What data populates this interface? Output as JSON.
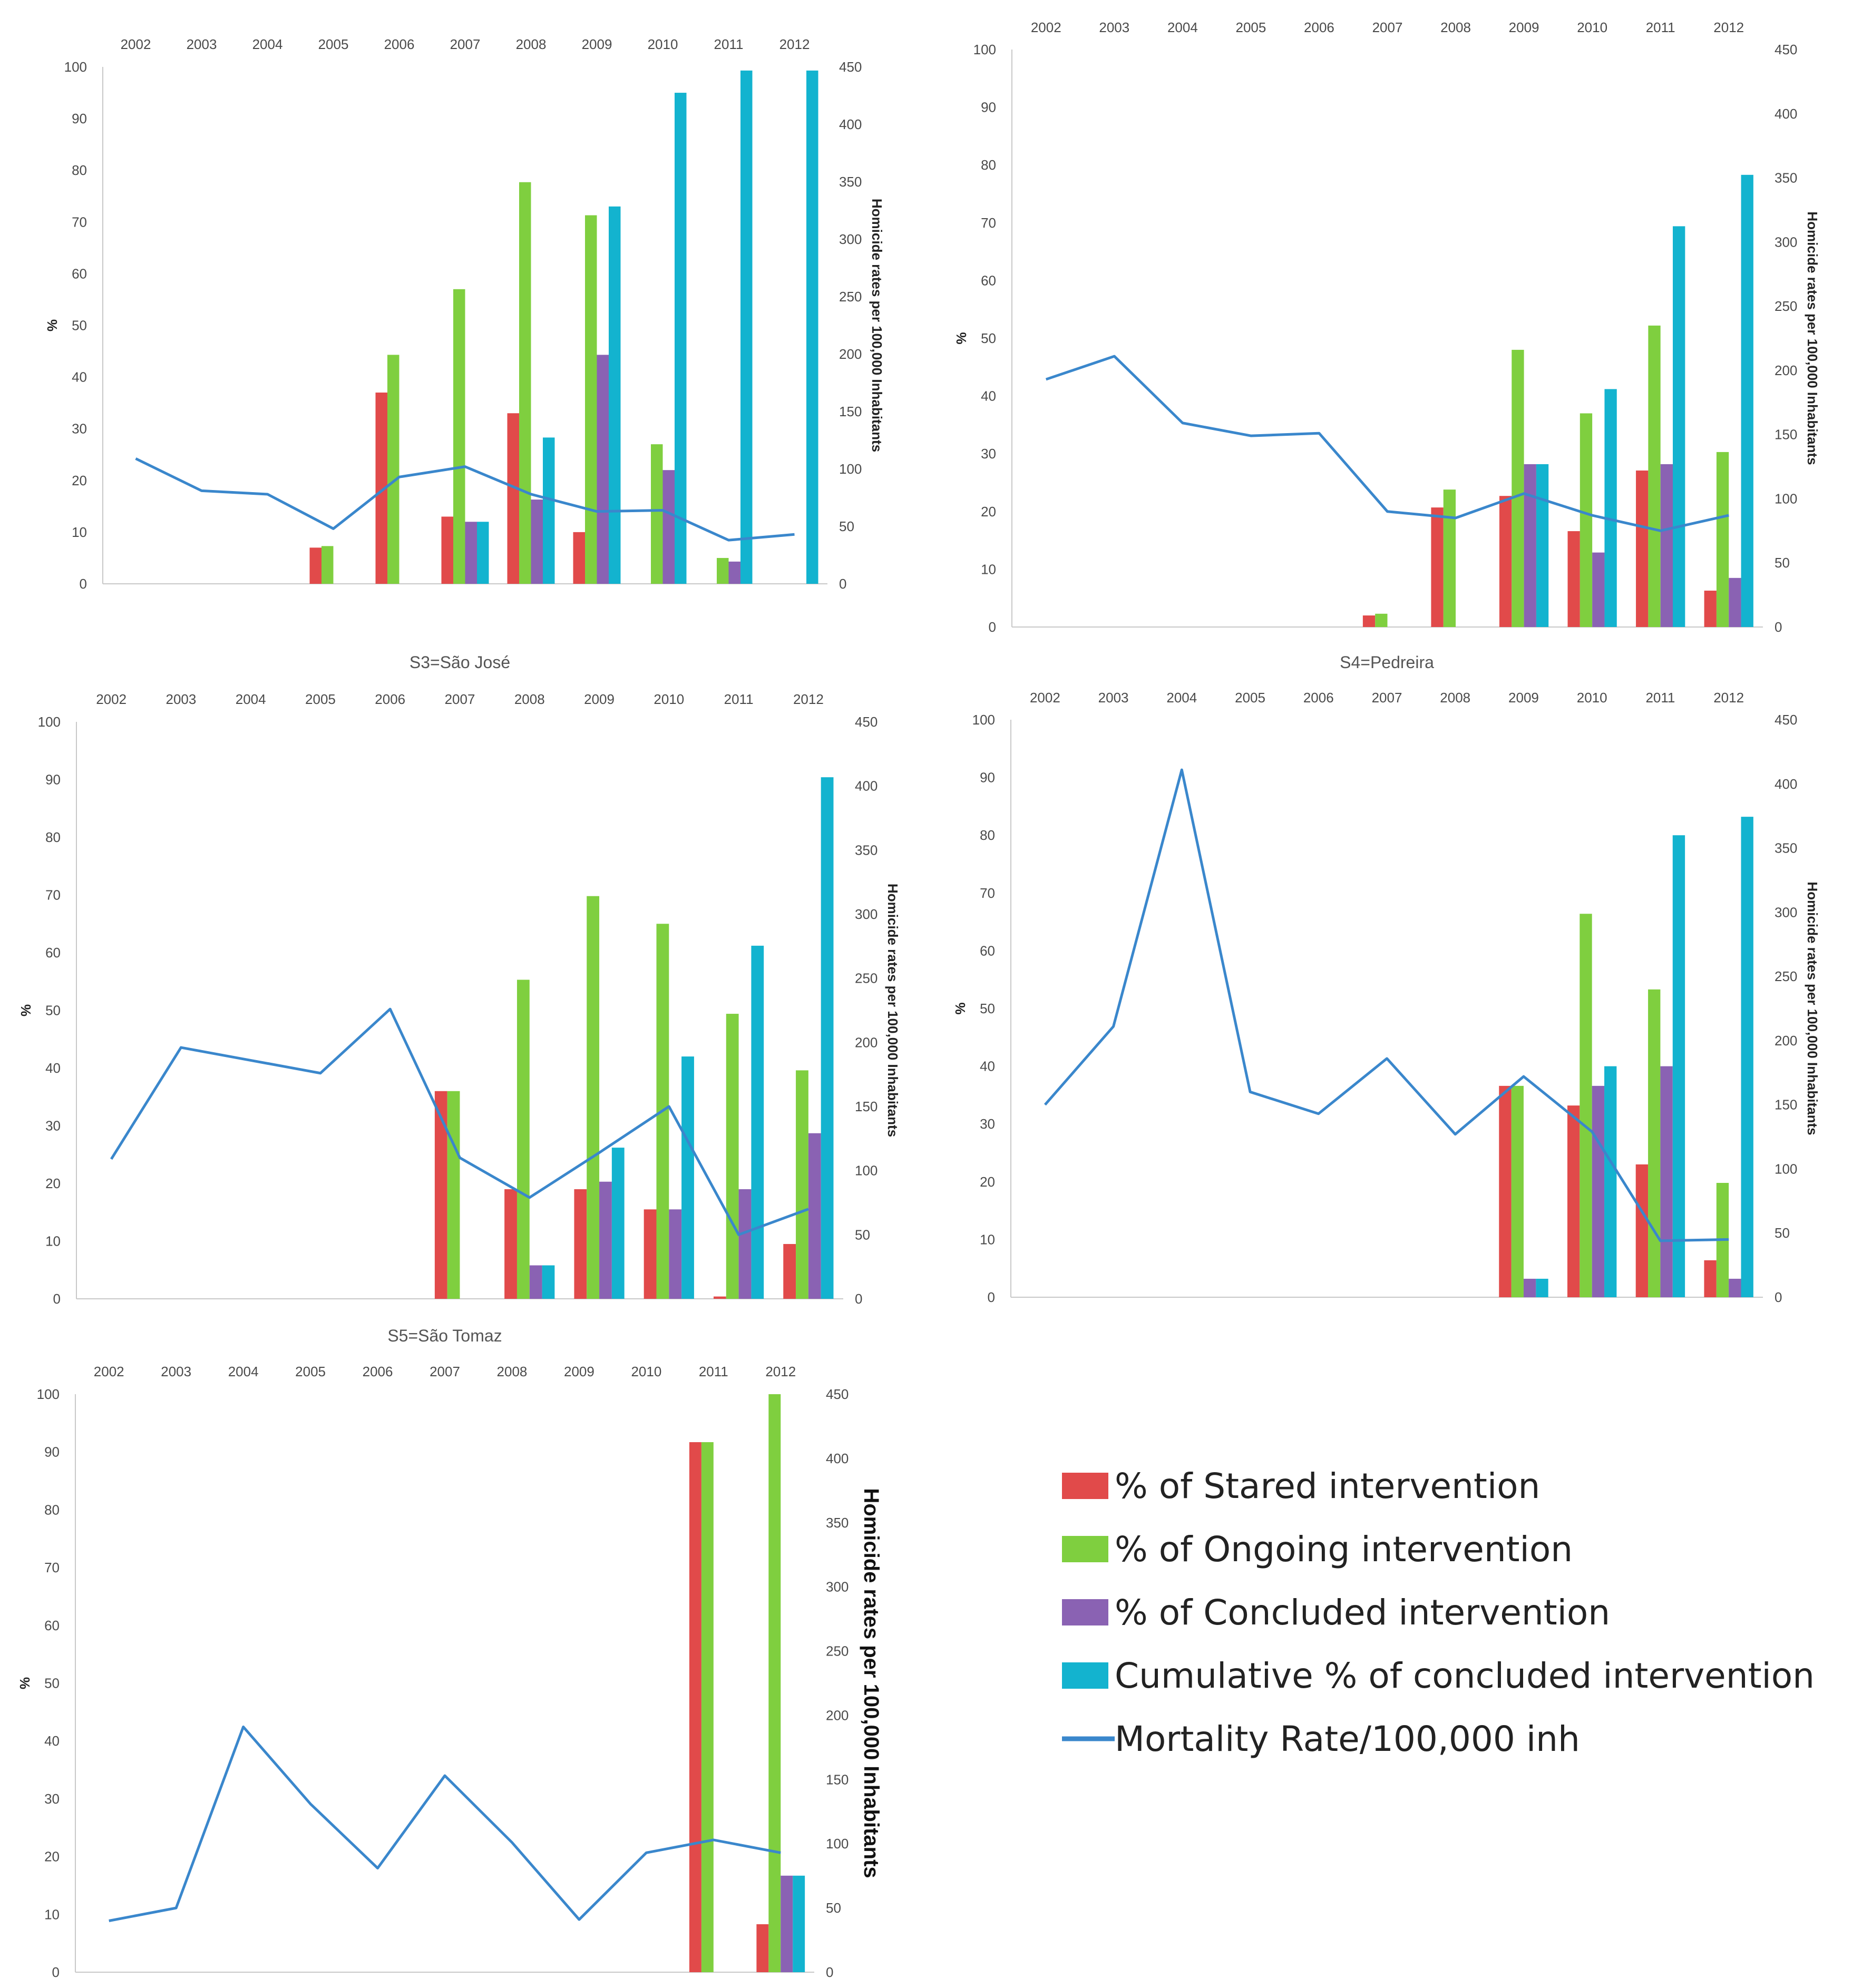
{
  "chart_data": [
    {
      "id": "s2",
      "type": "bar",
      "title": "",
      "categories": [
        "2002",
        "2003",
        "2004",
        "2005",
        "2006",
        "2007",
        "2008",
        "2009",
        "2010",
        "2011",
        "2012"
      ],
      "series": [
        {
          "name": "% of Stared intervention",
          "color": "#e14a4a",
          "values": [
            0,
            0,
            0,
            7,
            37,
            13,
            33,
            10,
            0,
            0,
            0
          ]
        },
        {
          "name": "% of Ongoing intervention",
          "color": "#7fcf3f",
          "values": [
            0,
            0,
            0,
            7.3,
            44.3,
            57,
            77.7,
            71.3,
            27,
            5,
            0
          ]
        },
        {
          "name": "% of Concluded intervention",
          "color": "#8a62b3",
          "values": [
            0,
            0,
            0,
            0,
            0,
            12,
            16.3,
            44.3,
            22,
            4.3,
            0
          ]
        },
        {
          "name": "Cumulative % of concluded intervention",
          "color": "#13b3cf",
          "values": [
            0,
            0,
            0,
            0,
            0,
            12,
            28.3,
            73,
            95,
            99.3,
            99.3
          ]
        }
      ],
      "line": {
        "name": "Mortality Rate/100,000 inh",
        "color": "#3a87cc",
        "values": [
          109,
          81,
          78,
          48,
          93,
          102,
          78,
          63,
          64,
          38,
          43
        ]
      },
      "ylabel": "%",
      "ylim": [
        0,
        100
      ],
      "yticks": [
        "0",
        "10",
        "20",
        "30",
        "40",
        "50",
        "60",
        "70",
        "80",
        "90",
        "100"
      ],
      "y2label": "Homicide rates per 100,000 Inhabitants",
      "y2lim": [
        0,
        450
      ],
      "y2ticks": [
        "0",
        "50",
        "100",
        "150",
        "200",
        "250",
        "300",
        "350",
        "400",
        "450"
      ]
    },
    {
      "id": "s3",
      "type": "bar",
      "title": "",
      "categories": [
        "2002",
        "2003",
        "2004",
        "2005",
        "2006",
        "2007",
        "2008",
        "2009",
        "2010",
        "2011",
        "2012"
      ],
      "series": [
        {
          "name": "% of Stared intervention",
          "color": "#e14a4a",
          "values": [
            0,
            0,
            0,
            0,
            0,
            2,
            20.7,
            22.7,
            16.6,
            27.1,
            6.3
          ]
        },
        {
          "name": "% of Ongoing intervention",
          "color": "#7fcf3f",
          "values": [
            0,
            0,
            0,
            0,
            0,
            2.3,
            23.8,
            48,
            37,
            52.2,
            30.3
          ]
        },
        {
          "name": "% of Concluded intervention",
          "color": "#8a62b3",
          "values": [
            0,
            0,
            0,
            0,
            0,
            0,
            0,
            28.2,
            12.9,
            28.2,
            8.5
          ]
        },
        {
          "name": "Cumulative % of concluded intervention",
          "color": "#13b3cf",
          "values": [
            0,
            0,
            0,
            0,
            0,
            0,
            0,
            28.2,
            41.2,
            69.4,
            78.3
          ]
        }
      ],
      "line": {
        "name": "Mortality Rate/100,000 inh",
        "color": "#3a87cc",
        "values": [
          193,
          211,
          159,
          149,
          151,
          90,
          85,
          104,
          87,
          75,
          87
        ]
      },
      "ylabel": "%",
      "ylim": [
        0,
        100
      ],
      "yticks": [
        "0",
        "10",
        "20",
        "30",
        "40",
        "50",
        "60",
        "70",
        "80",
        "90",
        "100"
      ],
      "y2label": "Homicide rates per 100,000 Inhabitants",
      "y2lim": [
        0,
        450
      ],
      "y2ticks": [
        "0",
        "50",
        "100",
        "150",
        "200",
        "250",
        "300",
        "350",
        "400",
        "450"
      ]
    },
    {
      "id": "s4",
      "type": "bar",
      "title": "S3=São José",
      "categories": [
        "2002",
        "2003",
        "2004",
        "2005",
        "2006",
        "2007",
        "2008",
        "2009",
        "2010",
        "2011",
        "2012"
      ],
      "series": [
        {
          "name": "% of Stared intervention",
          "color": "#e14a4a",
          "values": [
            0,
            0,
            0,
            0,
            0,
            36,
            19,
            19,
            15.5,
            0.4,
            9.5
          ]
        },
        {
          "name": "% of Ongoing intervention",
          "color": "#7fcf3f",
          "values": [
            0,
            0,
            0,
            0,
            0,
            36,
            55.3,
            69.8,
            65,
            49.4,
            39.6
          ]
        },
        {
          "name": "% of Concluded intervention",
          "color": "#8a62b3",
          "values": [
            0,
            0,
            0,
            0,
            0,
            0,
            5.8,
            20.3,
            15.5,
            19,
            28.7
          ]
        },
        {
          "name": "Cumulative % of concluded intervention",
          "color": "#13b3cf",
          "values": [
            0,
            0,
            0,
            0,
            0,
            0,
            5.8,
            26.2,
            42,
            61.2,
            90.4
          ]
        }
      ],
      "line": {
        "name": "Mortality Rate/100,000 inh",
        "color": "#3a87cc",
        "values": [
          109,
          196,
          186,
          176,
          226,
          110,
          79,
          114,
          150,
          50,
          70
        ]
      },
      "ylabel": "%",
      "ylim": [
        0,
        100
      ],
      "yticks": [
        "0",
        "10",
        "20",
        "30",
        "40",
        "50",
        "60",
        "70",
        "80",
        "90",
        "100"
      ],
      "y2label": "Homicide rates per 100,000 Inhabitants",
      "y2lim": [
        0,
        450
      ],
      "y2ticks": [
        "0",
        "50",
        "100",
        "150",
        "200",
        "250",
        "300",
        "350",
        "400",
        "450"
      ]
    },
    {
      "id": "s5",
      "type": "bar",
      "title": "S4=Pedreira",
      "categories": [
        "2002",
        "2003",
        "2004",
        "2005",
        "2006",
        "2007",
        "2008",
        "2009",
        "2010",
        "2011",
        "2012"
      ],
      "series": [
        {
          "name": "% of Stared intervention",
          "color": "#e14a4a",
          "values": [
            0,
            0,
            0,
            0,
            0,
            0,
            0,
            36.6,
            33.2,
            23,
            6.4
          ]
        },
        {
          "name": "% of Ongoing intervention",
          "color": "#7fcf3f",
          "values": [
            0,
            0,
            0,
            0,
            0,
            0,
            0,
            36.6,
            66.4,
            53.3,
            19.8
          ]
        },
        {
          "name": "% of Concluded intervention",
          "color": "#8a62b3",
          "values": [
            0,
            0,
            0,
            0,
            0,
            0,
            0,
            3.2,
            36.6,
            40,
            3.2
          ]
        },
        {
          "name": "Cumulative % of concluded intervention",
          "color": "#13b3cf",
          "values": [
            0,
            0,
            0,
            0,
            0,
            0,
            0,
            3.2,
            40,
            80,
            83.2
          ]
        }
      ],
      "line": {
        "name": "Mortality Rate/100,000 inh",
        "color": "#3a87cc",
        "values": [
          150,
          211,
          411,
          160,
          143,
          186,
          127,
          172,
          129,
          44,
          45
        ]
      },
      "ylabel": "%",
      "ylim": [
        0,
        100
      ],
      "yticks": [
        "0",
        "10",
        "20",
        "30",
        "40",
        "50",
        "60",
        "70",
        "80",
        "90",
        "100"
      ],
      "y2label": "Homicide rates per 100,000 Inhabitants",
      "y2lim": [
        0,
        450
      ],
      "y2ticks": [
        "0",
        "50",
        "100",
        "150",
        "200",
        "250",
        "300",
        "350",
        "400",
        "450"
      ]
    },
    {
      "id": "s6",
      "type": "bar",
      "title": "S5=São Tomaz",
      "categories": [
        "2002",
        "2003",
        "2004",
        "2005",
        "2006",
        "2007",
        "2008",
        "2009",
        "2010",
        "2011",
        "2012"
      ],
      "series": [
        {
          "name": "% of Stared intervention",
          "color": "#e14a4a",
          "values": [
            0,
            0,
            0,
            0,
            0,
            0,
            0,
            0,
            0,
            91.7,
            8.3
          ]
        },
        {
          "name": "% of Ongoing intervention",
          "color": "#7fcf3f",
          "values": [
            0,
            0,
            0,
            0,
            0,
            0,
            0,
            0,
            0,
            91.7,
            100
          ]
        },
        {
          "name": "% of Concluded intervention",
          "color": "#8a62b3",
          "values": [
            0,
            0,
            0,
            0,
            0,
            0,
            0,
            0,
            0,
            0,
            16.7
          ]
        },
        {
          "name": "Cumulative % of concluded intervention",
          "color": "#13b3cf",
          "values": [
            0,
            0,
            0,
            0,
            0,
            0,
            0,
            0,
            0,
            0,
            16.7
          ]
        }
      ],
      "line": {
        "name": "Mortality Rate/100,000 inh",
        "color": "#3a87cc",
        "values": [
          40,
          50,
          191,
          131,
          81,
          153,
          101,
          41,
          93,
          103,
          93
        ]
      },
      "ylabel": "%",
      "ylim": [
        0,
        100
      ],
      "yticks": [
        "0",
        "10",
        "20",
        "30",
        "40",
        "50",
        "60",
        "70",
        "80",
        "90",
        "100"
      ],
      "y2label": "Homicide rates per 100,000 Inhabitants",
      "y2lim": [
        0,
        450
      ],
      "y2ticks": [
        "0",
        "50",
        "100",
        "150",
        "200",
        "250",
        "300",
        "350",
        "400",
        "450"
      ]
    }
  ],
  "legend": {
    "items": [
      {
        "label": "% of Stared intervention",
        "color": "#e14a4a",
        "kind": "box"
      },
      {
        "label": "% of Ongoing intervention",
        "color": "#7fcf3f",
        "kind": "box"
      },
      {
        "label": "% of Concluded intervention",
        "color": "#8a62b3",
        "kind": "box"
      },
      {
        "label": "Cumulative % of concluded intervention",
        "color": "#13b3cf",
        "kind": "box"
      },
      {
        "label": "Mortality Rate/100,000 inh",
        "color": "#3a87cc",
        "kind": "line"
      }
    ]
  }
}
